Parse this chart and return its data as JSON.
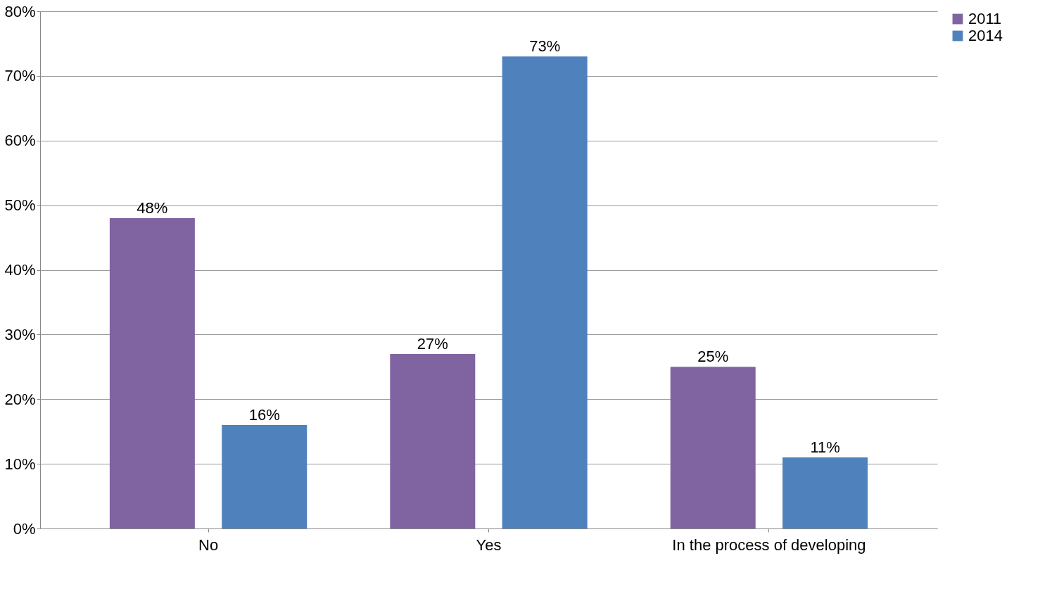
{
  "chart_data": {
    "type": "bar",
    "categories": [
      "No",
      "Yes",
      "In the process of developing"
    ],
    "series": [
      {
        "name": "2011",
        "color": "#8064a2",
        "values": [
          48,
          27,
          25
        ]
      },
      {
        "name": "2014",
        "color": "#4f81bd",
        "values": [
          16,
          73,
          11
        ]
      }
    ],
    "ylim": [
      0,
      80
    ],
    "yticks": [
      {
        "value": 0,
        "label": "0%"
      },
      {
        "value": 10,
        "label": "10%"
      },
      {
        "value": 20,
        "label": "20%"
      },
      {
        "value": 30,
        "label": "30%"
      },
      {
        "value": 40,
        "label": "40%"
      },
      {
        "value": 50,
        "label": "50%"
      },
      {
        "value": 60,
        "label": "60%"
      },
      {
        "value": 70,
        "label": "70%"
      },
      {
        "value": 80,
        "label": "80%"
      }
    ],
    "value_labels": [
      "48%",
      "27%",
      "25%",
      "16%",
      "73%",
      "11%"
    ],
    "grid": "y",
    "legend": "right"
  }
}
